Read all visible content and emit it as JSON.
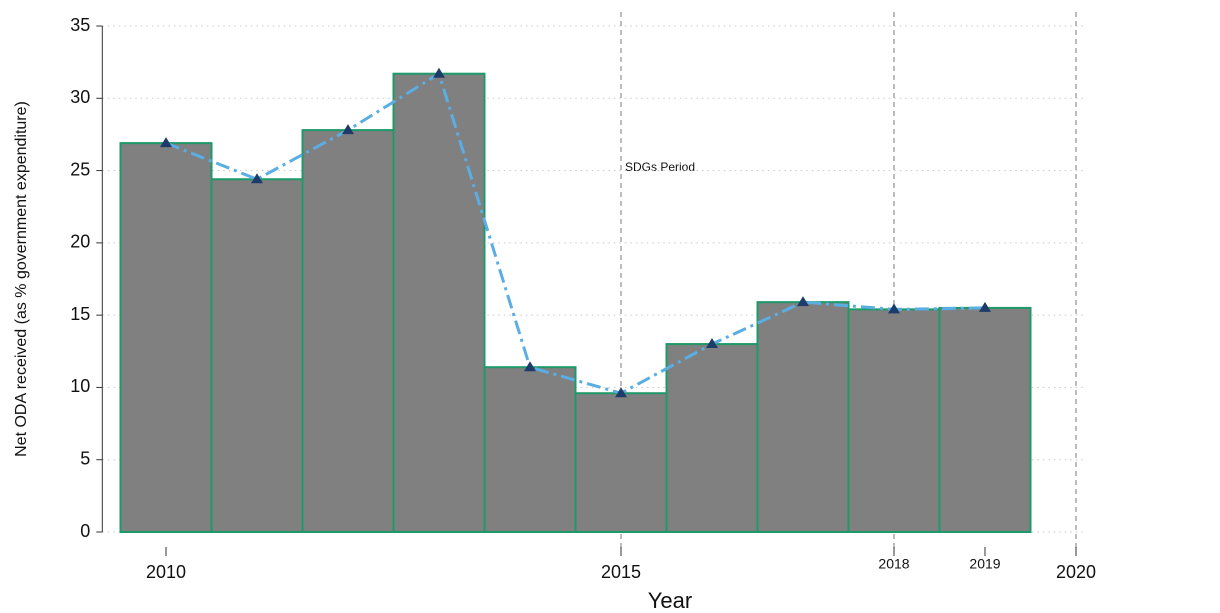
{
  "chart_data": {
    "type": "bar",
    "x": [
      2010,
      2011,
      2012,
      2013,
      2014,
      2015,
      2016,
      2017,
      2018,
      2019
    ],
    "values": [
      26.9,
      24.4,
      27.8,
      31.7,
      11.4,
      9.6,
      13.0,
      15.9,
      15.4,
      15.5
    ],
    "bar_color": "#808080",
    "edge_color": "#1e9a6a",
    "line_color": "#5aaee3",
    "marker_color": "#1d3c6a",
    "xlim": [
      2009.3,
      2020.1
    ],
    "xticks": [
      2010,
      2015,
      2018,
      2019,
      2020
    ],
    "ylim": [
      0,
      35
    ],
    "yticks": [
      0,
      5,
      10,
      15,
      20,
      25,
      30,
      35
    ],
    "vlines": [
      2015,
      2018,
      2020
    ],
    "grid": true,
    "xlabel": "Year",
    "ylabel": "Net ODA received (as % government expenditure)",
    "annotation": "SDGs Period"
  }
}
